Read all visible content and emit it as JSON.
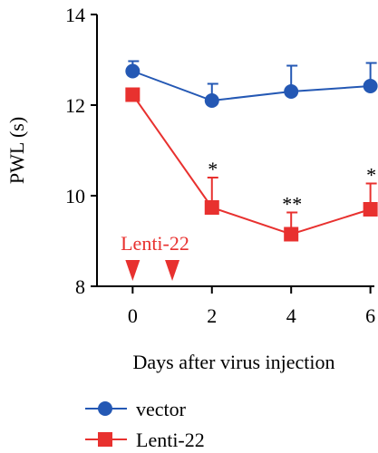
{
  "chart_data": {
    "type": "line",
    "title": "",
    "xlabel": "Days after virus injection",
    "ylabel": "PWL (s)",
    "xlim": [
      -0.9,
      6.1
    ],
    "ylim": [
      8,
      14
    ],
    "x_ticks": [
      0,
      2,
      4,
      6
    ],
    "y_ticks": [
      8,
      10,
      12,
      14
    ],
    "grid": false,
    "legend_position": "bottom-left",
    "series": [
      {
        "name": "vector",
        "color": "#2458b4",
        "marker": "circle",
        "x": [
          0,
          2,
          4,
          6
        ],
        "y": [
          12.75,
          12.1,
          12.3,
          12.42
        ],
        "error_upper": [
          12.97,
          12.47,
          12.87,
          12.93
        ],
        "significance": [
          "",
          "",
          "",
          ""
        ]
      },
      {
        "name": "Lenti-22",
        "color": "#e8312f",
        "marker": "square",
        "x": [
          0,
          2,
          4,
          6
        ],
        "y": [
          12.23,
          9.74,
          9.15,
          9.7
        ],
        "error_upper": [
          12.23,
          10.4,
          9.63,
          10.27
        ],
        "significance": [
          "",
          "*",
          "**",
          "*"
        ]
      }
    ],
    "annotations": [
      {
        "text": "Lenti-22",
        "color": "#e8312f",
        "arrow_days": [
          0,
          1
        ]
      }
    ]
  }
}
